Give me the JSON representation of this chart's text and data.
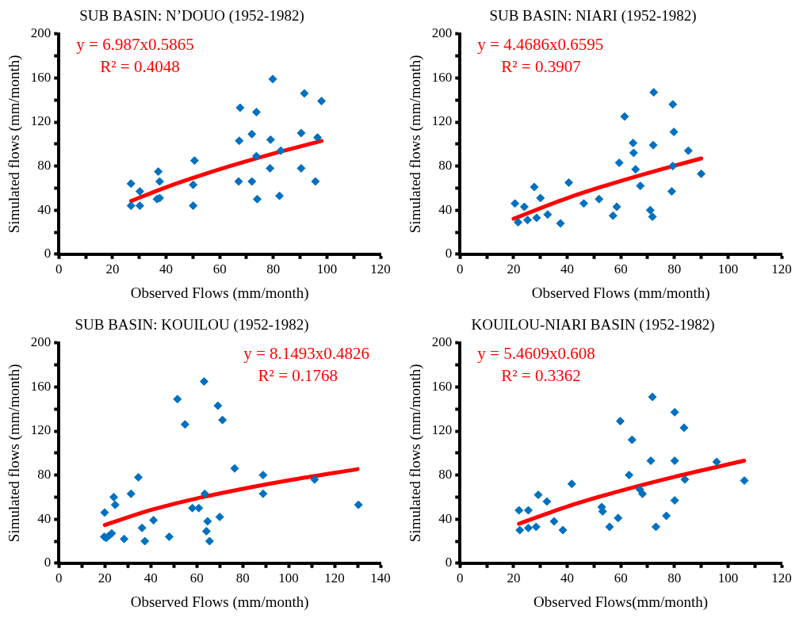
{
  "chart_data": [
    {
      "type": "scatter",
      "title": "SUB BASIN: N’DOUO (1952-1982)",
      "xlabel": "Observed Flows (mm/month)",
      "ylabel": "Simulated flows (mm/month)",
      "marker": "diamond",
      "xlim": [
        0,
        120
      ],
      "ylim": [
        0,
        200
      ],
      "xticks": [
        0,
        {
          "value": 10,
          "label": null
        },
        20,
        {
          "value": 30,
          "label": null
        },
        40,
        {
          "value": 50,
          "label": null
        },
        60,
        {
          "value": 70,
          "label": null
        },
        80,
        {
          "value": 90,
          "label": null
        },
        100,
        {
          "value": 110,
          "label": null
        },
        120
      ],
      "yticks": [
        0,
        {
          "value": 20,
          "label": null
        },
        40,
        {
          "value": 60,
          "label": null
        },
        80,
        {
          "value": 100,
          "label": null
        },
        120,
        {
          "value": 140,
          "label": null
        },
        160,
        {
          "value": 180,
          "label": null
        },
        200
      ],
      "annotations": [
        "y = 6.987x0.5865",
        "R² = 0.4048"
      ],
      "series": [
        {
          "type": "scatter",
          "color": "#0070c0",
          "x": [
            26.9,
            26.9,
            30.2,
            30.2,
            37.1,
            37.6,
            36.6,
            37.6,
            50.6,
            50.1,
            50.1,
            67.6,
            67.3,
            67.1,
            73.7,
            72,
            73.7,
            72,
            74,
            79.8,
            79,
            78.8,
            82.8,
            82.3,
            91.6,
            90.4,
            90.4,
            98,
            96.5,
            95.7
          ],
          "values": [
            64,
            44,
            57,
            44,
            75,
            66,
            50,
            51,
            85,
            63,
            44,
            133,
            103,
            66,
            129,
            109,
            89,
            66,
            50,
            159,
            104,
            78,
            94,
            53,
            146,
            110,
            78,
            139,
            106,
            66
          ]
        },
        {
          "type": "line",
          "marker": "none",
          "color": "#ff0000",
          "x": [
            27,
            40,
            60,
            80,
            98
          ],
          "values": [
            48.3,
            60.8,
            77.1,
            91.3,
            102.8
          ]
        }
      ]
    },
    {
      "type": "scatter",
      "title": "SUB BASIN: NIARI (1952-1982)",
      "xlabel": "Observed Flows (mm/month)",
      "ylabel": "Simulated flows (mm/month)",
      "marker": "diamond",
      "xlim": [
        0,
        120
      ],
      "ylim": [
        0,
        200
      ],
      "xticks": [
        0,
        {
          "value": 10,
          "label": null
        },
        20,
        {
          "value": 30,
          "label": null
        },
        40,
        {
          "value": 50,
          "label": null
        },
        60,
        {
          "value": 70,
          "label": null
        },
        80,
        {
          "value": 90,
          "label": null
        },
        100,
        {
          "value": 110,
          "label": null
        },
        120
      ],
      "yticks": [
        0,
        {
          "value": 20,
          "label": null
        },
        40,
        {
          "value": 60,
          "label": null
        },
        80,
        {
          "value": 100,
          "label": null
        },
        120,
        {
          "value": 140,
          "label": null
        },
        160,
        {
          "value": 180,
          "label": null
        },
        200
      ],
      "annotations": [
        "y = 4.4686x0.6595",
        "R² = 0.3907"
      ],
      "series": [
        {
          "type": "scatter",
          "color": "#0070c0",
          "x": [
            20.5,
            21.7,
            24,
            25.2,
            27.7,
            28.6,
            30,
            32.7,
            37.5,
            40.6,
            46.2,
            51.9,
            57.1,
            58.5,
            59.4,
            61.4,
            64.6,
            64.8,
            65.5,
            67.3,
            71,
            71.8,
            72.1,
            72.3,
            79.4,
            79.8,
            79.4,
            79,
            85.2,
            90
          ],
          "values": [
            46,
            29,
            43,
            31,
            61,
            33,
            51,
            36,
            28,
            65,
            46,
            50,
            35,
            43,
            83,
            125,
            101,
            92,
            77,
            62,
            40,
            34,
            99,
            147,
            136,
            111,
            80,
            57,
            94,
            73
          ]
        },
        {
          "type": "line",
          "marker": "none",
          "color": "#ff0000",
          "x": [
            20,
            40,
            60,
            80,
            90
          ],
          "values": [
            32.2,
            50.9,
            66.5,
            80.4,
            86.9
          ]
        }
      ]
    },
    {
      "type": "scatter",
      "title": "SUB BASIN: KOUILOU (1952-1982)",
      "xlabel": "Observed Flows (mm/month)",
      "ylabel": "Simulated flows (mm/month)",
      "marker": "diamond",
      "xlim": [
        0,
        140
      ],
      "ylim": [
        0,
        200
      ],
      "xticks": [
        0,
        {
          "value": 10,
          "label": null
        },
        20,
        {
          "value": 30,
          "label": null
        },
        40,
        {
          "value": 50,
          "label": null
        },
        60,
        {
          "value": 70,
          "label": null
        },
        80,
        {
          "value": 90,
          "label": null
        },
        100,
        {
          "value": 110,
          "label": null
        },
        120,
        {
          "value": 130,
          "label": null
        },
        140
      ],
      "yticks": [
        0,
        {
          "value": 20,
          "label": null
        },
        40,
        {
          "value": 60,
          "label": null
        },
        80,
        {
          "value": 100,
          "label": null
        },
        120,
        {
          "value": 140,
          "label": null
        },
        160,
        {
          "value": 180,
          "label": null
        },
        200
      ],
      "annotations": [
        "y = 8.1493x0.4826",
        "R² = 0.1768"
      ],
      "series": [
        {
          "type": "scatter",
          "color": "#0070c0",
          "x": [
            19.7,
            20.6,
            21.8,
            23,
            19.9,
            23.9,
            24.5,
            28.4,
            31.4,
            34.6,
            36.2,
            37.4,
            41.2,
            48,
            51.6,
            54.9,
            58.1,
            60.9,
            63.2,
            63.5,
            64.7,
            64.2,
            65.6,
            69.2,
            70,
            71.2,
            76.5,
            88.9,
            88.9,
            111.3,
            130.4
          ],
          "values": [
            24,
            23,
            25,
            27,
            46,
            60,
            53,
            22,
            63,
            78,
            32,
            20,
            39,
            24,
            149,
            126,
            50,
            50,
            165,
            63,
            38,
            29,
            20,
            143,
            42,
            130,
            86,
            80,
            63,
            76,
            53
          ]
        },
        {
          "type": "line",
          "marker": "none",
          "color": "#ff0000",
          "x": [
            20,
            40,
            60,
            80,
            100,
            130
          ],
          "values": [
            34.6,
            48.3,
            58.8,
            67.5,
            75.2,
            85.4
          ]
        }
      ]
    },
    {
      "type": "scatter",
      "title": "KOUILOU-NIARI BASIN (1952-1982)",
      "xlabel": "Observed Flows(mm/month)",
      "ylabel": "Simulated flows (mm/month)",
      "marker": "diamond",
      "xlim": [
        0,
        120
      ],
      "ylim": [
        0,
        200
      ],
      "xticks": [
        0,
        {
          "value": 10,
          "label": null
        },
        20,
        {
          "value": 30,
          "label": null
        },
        40,
        {
          "value": 50,
          "label": null
        },
        60,
        {
          "value": 70,
          "label": null
        },
        80,
        {
          "value": 90,
          "label": null
        },
        100,
        {
          "value": 110,
          "label": null
        },
        120
      ],
      "yticks": [
        0,
        {
          "value": 20,
          "label": null
        },
        40,
        {
          "value": 60,
          "label": null
        },
        80,
        {
          "value": 100,
          "label": null
        },
        120,
        {
          "value": 140,
          "label": null
        },
        160,
        {
          "value": 180,
          "label": null
        },
        200
      ],
      "annotations": [
        "y = 5.4609x0.608",
        "R² = 0.3362"
      ],
      "series": [
        {
          "type": "scatter",
          "color": "#0070c0",
          "x": [
            22,
            22.3,
            25.5,
            25.5,
            28.4,
            29.2,
            32.4,
            35.1,
            38.4,
            41.7,
            52.9,
            53.2,
            55.8,
            59,
            59.8,
            63.1,
            64.2,
            67.1,
            68.1,
            71.2,
            71.8,
            73.1,
            77,
            80.1,
            80.1,
            80.1,
            83.6,
            83.9,
            95.8,
            106.1
          ],
          "values": [
            48,
            30,
            48,
            32,
            33,
            62,
            56,
            38,
            30,
            72,
            51,
            47,
            33,
            41,
            129,
            80,
            112,
            67,
            63,
            93,
            151,
            33,
            43,
            137,
            93,
            57,
            123,
            76,
            92,
            75
          ]
        },
        {
          "type": "line",
          "marker": "none",
          "color": "#ff0000",
          "x": [
            22,
            40,
            60,
            80,
            106
          ],
          "values": [
            35.8,
            51.4,
            65.8,
            78.4,
            93.0
          ]
        }
      ]
    }
  ]
}
